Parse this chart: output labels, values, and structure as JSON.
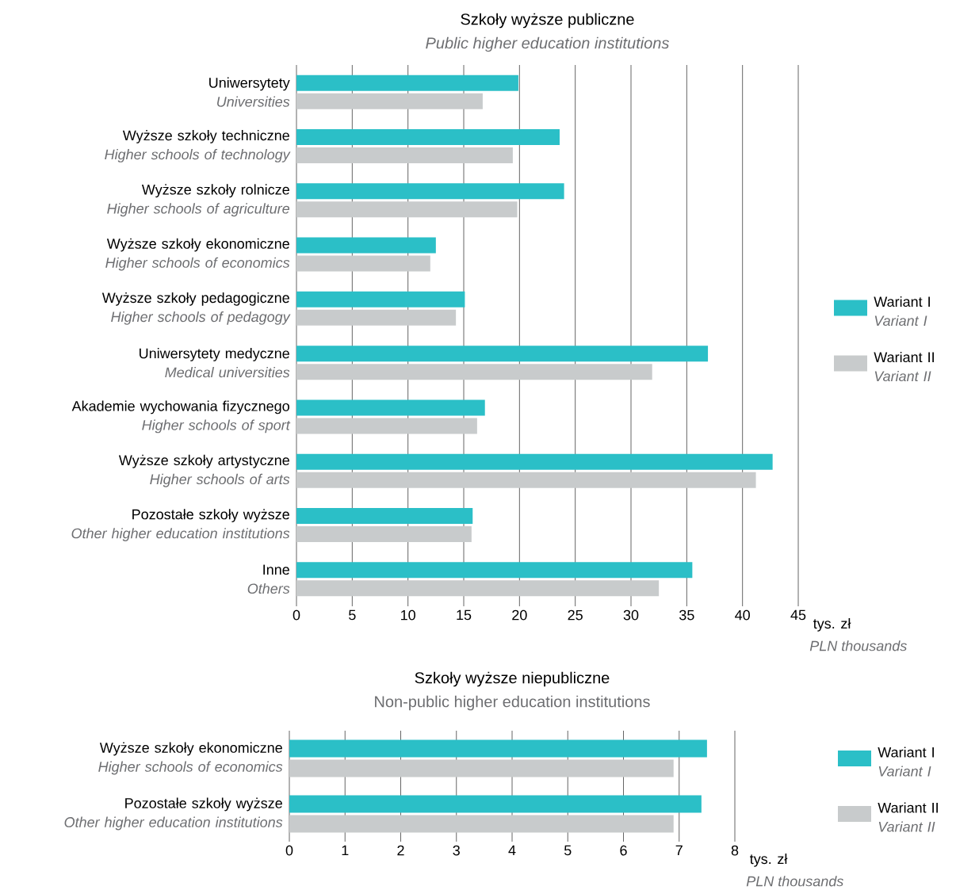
{
  "chart_data": [
    {
      "type": "bar",
      "orientation": "horizontal",
      "title": "Szkoły wyższe publiczne",
      "subtitle": "Public higher education institutions",
      "categories": [
        "Uniwersytety *Universities*",
        "Wyższe szkoły techniczne *Higher schools of technology*",
        "Wyższe szkoły rolnicze *Higher schools of agriculture*",
        "Wyższe szkoły ekonomiczne *Higher schools of economics*",
        "Wyższe szkoły pedagogiczne *Higher schools of pedagogy*",
        "Uniwersytety medyczne *Medical universities*",
        "Akademie wychowania fizycznego *Higher schools of sport*",
        "Wyższe szkoły artystyczne *Higher schools of arts*",
        "Pozostałe szkoły wyższe *Other higher education institutions*",
        "Inne *Others*"
      ],
      "series": [
        {
          "name": "Wariant I *Variant I*",
          "color": "#2bbfc7",
          "values": [
            19.9,
            23.6,
            24.0,
            12.5,
            15.1,
            36.9,
            16.9,
            42.7,
            15.8,
            35.5
          ]
        },
        {
          "name": "Wariant II *Variant II*",
          "color": "#c8cbcc",
          "values": [
            16.7,
            19.4,
            19.8,
            12.0,
            14.3,
            31.9,
            16.2,
            41.2,
            15.7,
            32.5
          ]
        }
      ],
      "xlim": [
        0,
        45
      ],
      "xticks": [
        0,
        5,
        10,
        15,
        20,
        25,
        30,
        35,
        40,
        45
      ],
      "xlabel": "tys. zł",
      "annotations": [
        "PLN thousands"
      ],
      "grid": "x",
      "legend": "right"
    },
    {
      "type": "bar",
      "orientation": "horizontal",
      "title": "Szkoły wyższe niepubliczne",
      "subtitle": "Non-public higher education institutions",
      "categories": [
        "Wyższe szkoły ekonomiczne *Higher schools of economics*",
        "Pozostałe szkoły wyższe *Other higher education institutions*"
      ],
      "series": [
        {
          "name": "Wariant I *Variant I*",
          "color": "#2bbfc7",
          "values": [
            7.5,
            7.4
          ]
        },
        {
          "name": "Wariant II *Variant II*",
          "color": "#c8cbcc",
          "values": [
            6.9,
            6.9
          ]
        }
      ],
      "xlim": [
        0,
        8
      ],
      "xticks": [
        0,
        1,
        2,
        3,
        4,
        5,
        6,
        7,
        8
      ],
      "xlabel": "tys. zł",
      "annotations": [
        "PLN thousands"
      ],
      "grid": "x",
      "legend": "right"
    }
  ]
}
